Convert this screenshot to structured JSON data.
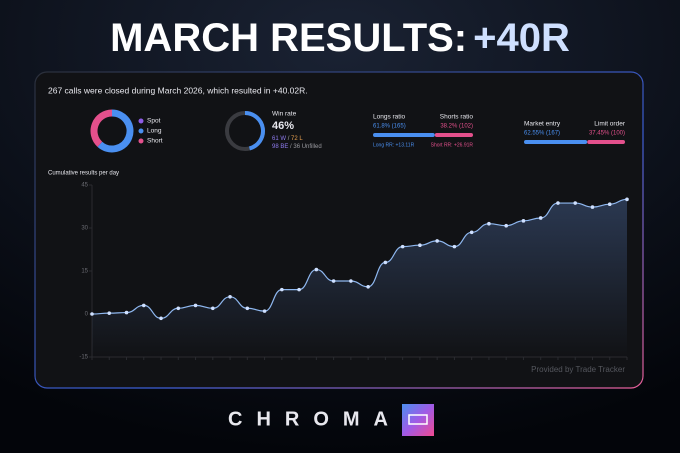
{
  "header": {
    "title": "MARCH RESULTS:",
    "result": "+40R"
  },
  "summary": "267 calls were closed during March 2026, which resulted in +40.02R.",
  "direction_donut": {
    "type": "pie",
    "categories": [
      "Spot",
      "Long",
      "Short"
    ],
    "colors": [
      "#8e5ce6",
      "#4a8ff0",
      "#e4508c"
    ],
    "values": [
      0,
      165,
      102
    ]
  },
  "win_rate": {
    "label": "Win rate",
    "value": 46,
    "value_label": "46%",
    "color": "#4a8ff0",
    "wins": "61 W",
    "separator": "/",
    "losses": "72 L",
    "breakeven": "98 BE",
    "unfilled": "/ 36 Unfilled"
  },
  "ratios": [
    {
      "left_label": "Longs ratio",
      "left_value": 61.8,
      "left_value_label": "61.8% (165)",
      "right_label": "Shorts ratio",
      "right_value": 38.2,
      "right_value_label": "38.2% (102)",
      "left_note": "Long RR: +13.11R",
      "right_note": "Short RR: +26.91R"
    },
    {
      "left_label": "Market entry",
      "left_value": 62.55,
      "left_value_label": "62.55% (167)",
      "right_label": "Limit order",
      "right_value": 37.45,
      "right_value_label": "37.45% (100)"
    }
  ],
  "chart_data": {
    "type": "line",
    "title": "Cumulative results per day",
    "color": "#8fb8f0",
    "values": [
      0,
      0.3,
      0.5,
      3,
      -1.5,
      2,
      3,
      2,
      6,
      2,
      1,
      8.5,
      8.5,
      15.5,
      11.5,
      11.5,
      9.5,
      18,
      23.5,
      24,
      25.5,
      23.5,
      28.5,
      31.5,
      30.8,
      32.5,
      33.5,
      38.7,
      38.7,
      37.3,
      38.3,
      40
    ],
    "ylim": [
      -15,
      45
    ],
    "yticks": [
      -15,
      0,
      15,
      30,
      45
    ]
  },
  "footer": {
    "credit": "Provided by Trade Tracker",
    "brand": "CHROMA"
  }
}
